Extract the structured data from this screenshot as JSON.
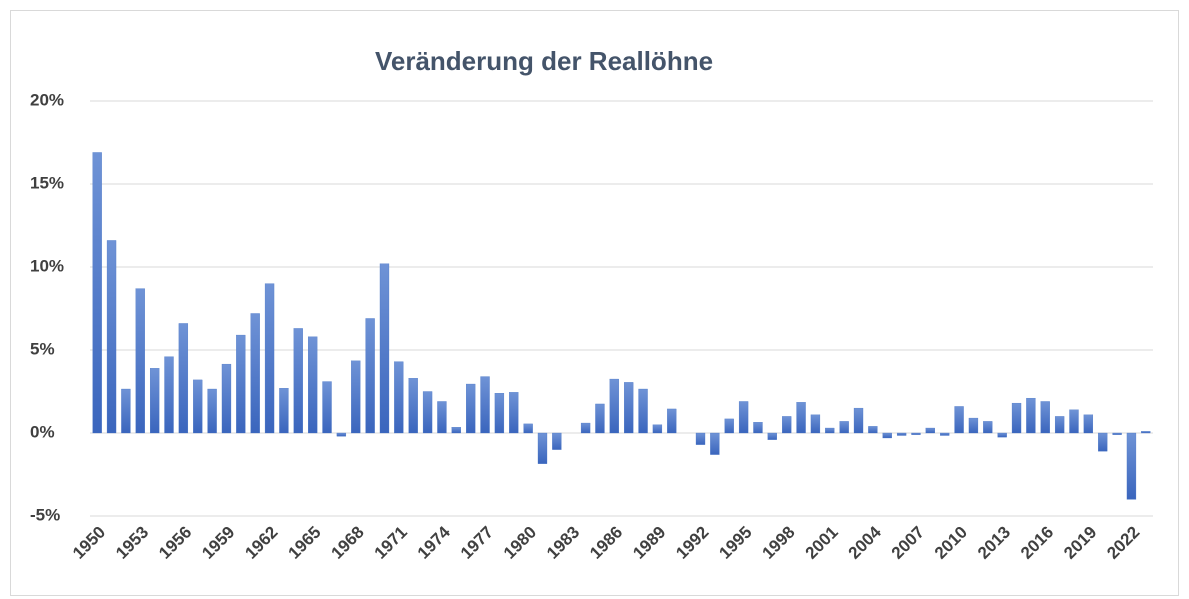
{
  "chart_data": {
    "type": "bar",
    "title": "Veränderung der Reallöhne",
    "categories": [
      "1950",
      null,
      null,
      "1953",
      null,
      null,
      "1956",
      null,
      null,
      "1959",
      null,
      null,
      "1962",
      null,
      null,
      "1965",
      null,
      null,
      "1968",
      null,
      null,
      "1971",
      null,
      null,
      "1974",
      null,
      null,
      "1977",
      null,
      null,
      "1980",
      null,
      null,
      "1983",
      null,
      null,
      "1986",
      null,
      null,
      "1989",
      null,
      null,
      "1992",
      null,
      null,
      "1995",
      null,
      null,
      "1998",
      null,
      null,
      "2001",
      null,
      null,
      "2004",
      null,
      null,
      "2007",
      null,
      null,
      "2010",
      null,
      null,
      "2013",
      null,
      null,
      "2016",
      null,
      null,
      "2019",
      null,
      null,
      "2022",
      null
    ],
    "values": [
      16.9,
      11.6,
      2.65,
      8.7,
      3.9,
      4.6,
      6.6,
      3.2,
      2.65,
      4.15,
      5.9,
      7.2,
      9.0,
      2.7,
      6.3,
      5.8,
      3.1,
      -0.2,
      4.35,
      6.9,
      10.2,
      4.3,
      3.3,
      2.5,
      1.9,
      0.35,
      2.95,
      3.4,
      2.4,
      2.45,
      0.55,
      -1.85,
      -1.0,
      0,
      0.6,
      1.75,
      3.25,
      3.05,
      2.65,
      0.5,
      1.45,
      0,
      -0.7,
      -1.3,
      0.85,
      1.9,
      0.65,
      -0.4,
      1.0,
      1.85,
      1.1,
      0.3,
      0.7,
      1.5,
      0.4,
      -0.3,
      -0.15,
      -0.1,
      0.3,
      -0.15,
      1.6,
      0.9,
      0.7,
      -0.25,
      1.8,
      2.1,
      1.9,
      1.0,
      1.4,
      1.1,
      -1.1,
      -0.1,
      -4.0,
      0.1
    ],
    "color": "#4472c4",
    "ylim": [
      -5,
      20
    ],
    "yticks": [
      {
        "value": -5,
        "label": "-5%"
      },
      {
        "value": 0,
        "label": "0%"
      },
      {
        "value": 5,
        "label": "5%"
      },
      {
        "value": 10,
        "label": "10%"
      },
      {
        "value": 15,
        "label": "15%"
      },
      {
        "value": 20,
        "label": "20%"
      }
    ],
    "grid": true
  }
}
